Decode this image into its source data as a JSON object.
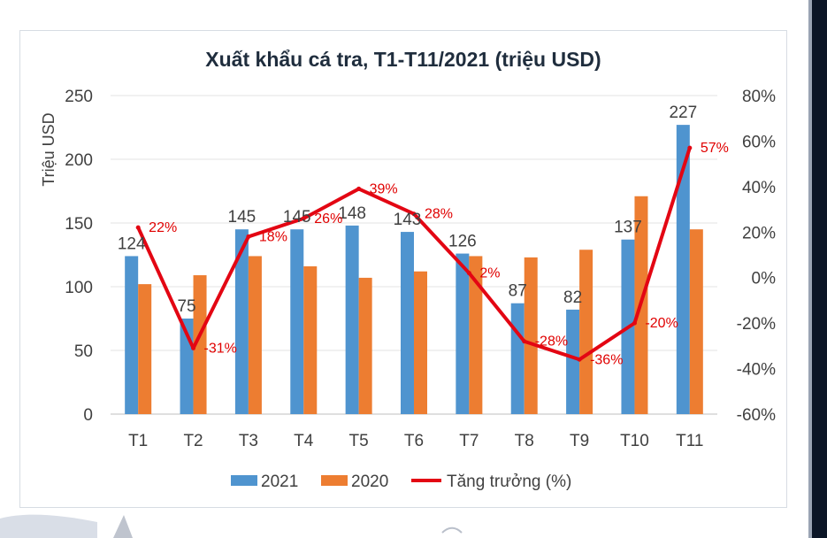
{
  "chart_data": {
    "type": "bar",
    "title": "Xuất khẩu cá tra, T1-T11/2021 (triệu USD)",
    "ylabel": "Triệu USD",
    "xlabel": "",
    "categories": [
      "T1",
      "T2",
      "T3",
      "T4",
      "T5",
      "T6",
      "T7",
      "T8",
      "T9",
      "T10",
      "T11"
    ],
    "ylim": [
      0,
      250
    ],
    "yticks": [
      "0",
      "50",
      "100",
      "150",
      "200",
      "250"
    ],
    "y2lim": [
      -60,
      80
    ],
    "y2ticks": [
      "-60%",
      "-40%",
      "-20%",
      "0%",
      "20%",
      "40%",
      "60%",
      "80%"
    ],
    "series": [
      {
        "name": "2021",
        "kind": "bar",
        "color": "#4f94cf",
        "values": [
          124,
          75,
          145,
          145,
          148,
          143,
          126,
          87,
          82,
          137,
          227
        ],
        "labels": [
          "124",
          "75",
          "145",
          "145",
          "148",
          "143",
          "126",
          "87",
          "82",
          "137",
          "227"
        ]
      },
      {
        "name": "2020",
        "kind": "bar",
        "color": "#ed7d31",
        "values": [
          102,
          109,
          124,
          116,
          107,
          112,
          124,
          123,
          129,
          171,
          145
        ]
      },
      {
        "name": "Tăng trưởng (%)",
        "kind": "line",
        "axis": "right",
        "color": "#e30613",
        "values": [
          22,
          -31,
          18,
          26,
          39,
          28,
          2,
          -28,
          -36,
          -20,
          57
        ],
        "labels": [
          "22%",
          "-31%",
          "18%",
          "26%",
          "39%",
          "28%",
          "2%",
          "-28%",
          "-36%",
          "-20%",
          "57%"
        ]
      }
    ],
    "legend_position": "bottom",
    "grid": true
  }
}
